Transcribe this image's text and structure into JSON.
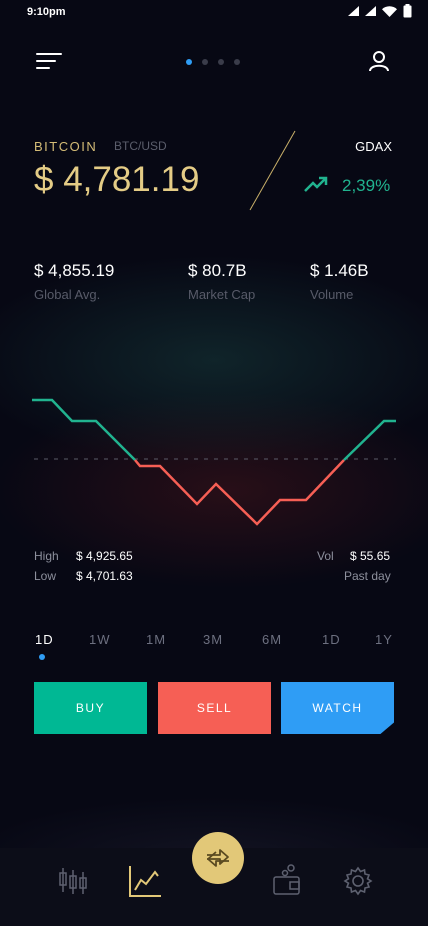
{
  "status_bar": {
    "time": "9:10pm"
  },
  "pager": {
    "count": 4,
    "active": 0
  },
  "header": {
    "coin": "BITCOIN",
    "pair": "BTC/USD",
    "price": "$ 4,781.19",
    "exchange": "GDAX",
    "change": "2,39%"
  },
  "stats": [
    {
      "value": "$ 4,855.19",
      "label": "Global Avg."
    },
    {
      "value": "$ 80.7B",
      "label": "Market Cap"
    },
    {
      "value": "$ 1.46B",
      "label": "Volume"
    }
  ],
  "range_info": {
    "high_label": "High",
    "high_value": "$ 4,925.65",
    "low_label": "Low",
    "low_value": "$ 4,701.63",
    "vol_label": "Vol",
    "vol_value": "$ 55.65",
    "period": "Past day"
  },
  "time_ranges": [
    "1D",
    "1W",
    "1M",
    "3M",
    "6M",
    "1D",
    "1Y"
  ],
  "active_range": 0,
  "actions": {
    "buy": "BUY",
    "sell": "SELL",
    "watch": "WATCH"
  },
  "colors": {
    "gold": "#e4cc86",
    "up": "#21b38f",
    "down": "#f65f55",
    "accent": "#2f9df5",
    "background": "#070814"
  },
  "tabs": [
    "candlestick-icon",
    "line-chart-icon",
    "exchange-icon",
    "wallet-icon",
    "settings-icon"
  ],
  "active_tab": 1
}
